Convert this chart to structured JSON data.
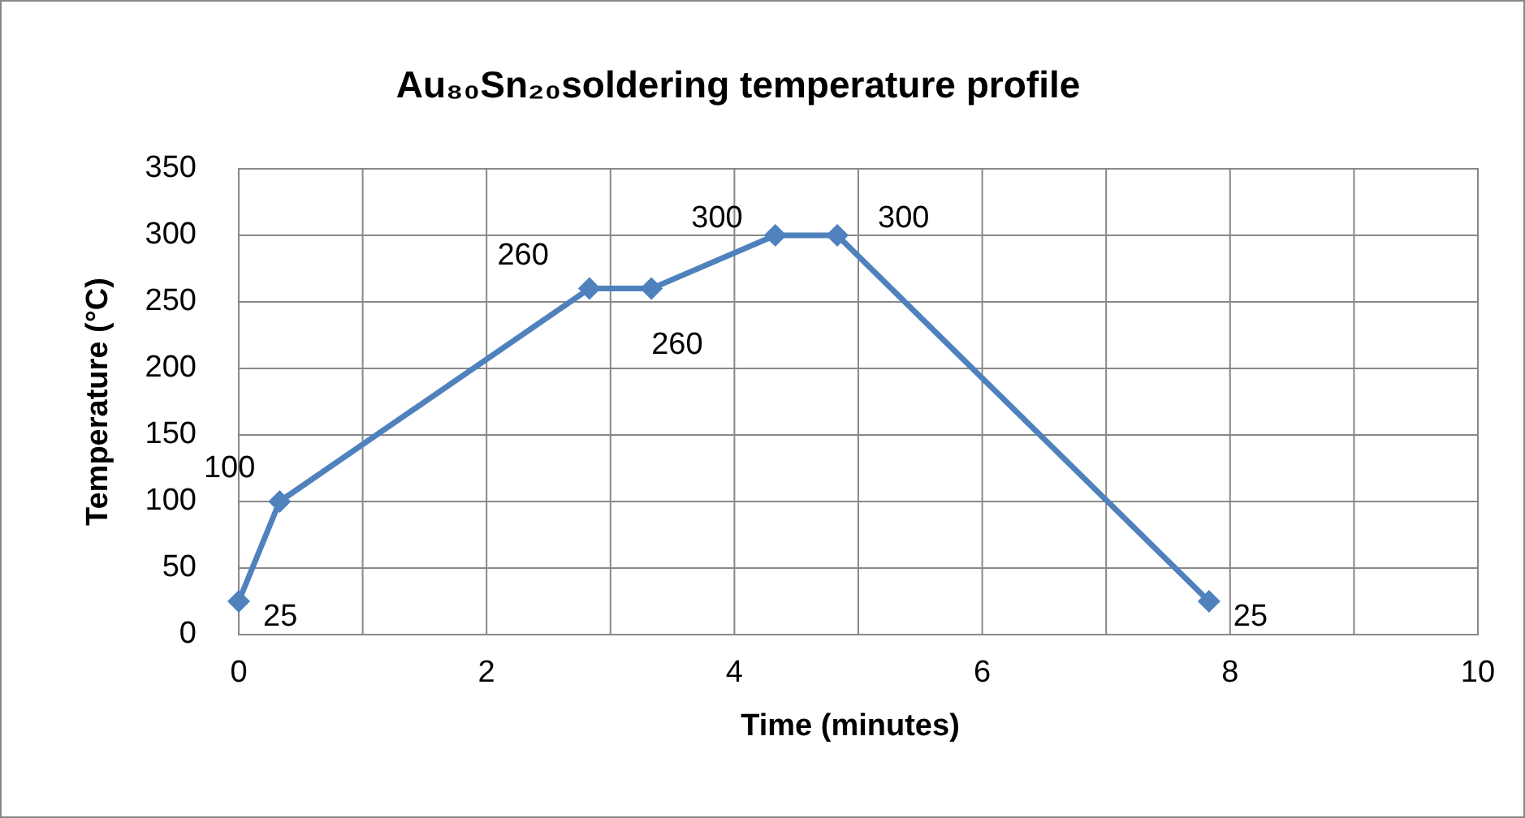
{
  "chart_data": {
    "type": "line",
    "title": "Au₈₀Sn₂₀soldering temperature profile",
    "xlabel": "Time (minutes)",
    "ylabel": "Temperature (°C)",
    "x": [
      0,
      0.33,
      2.83,
      3.33,
      4.33,
      4.83,
      7.83
    ],
    "series": [
      {
        "color": "#4f81bd",
        "values": [
          25,
          100,
          260,
          260,
          300,
          300,
          25
        ]
      }
    ],
    "xlim": [
      0,
      10
    ],
    "xticks": [
      0,
      {
        "value": 1,
        "label": null
      },
      2,
      {
        "value": 3,
        "label": null
      },
      4,
      {
        "value": 5,
        "label": null
      },
      6,
      {
        "value": 7,
        "label": null
      },
      8,
      {
        "value": 9,
        "label": null
      },
      10
    ],
    "ylim": [
      0,
      350
    ],
    "yticks": [
      0,
      50,
      100,
      150,
      200,
      250,
      300,
      350
    ],
    "grid": true,
    "marker": "diamond",
    "line_style": "solid",
    "data_labels": true
  }
}
